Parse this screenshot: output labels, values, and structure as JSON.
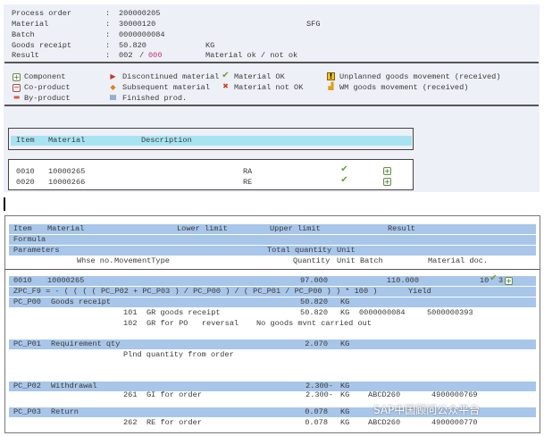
{
  "header": {
    "fields": [
      {
        "label": "Process order",
        "value": "200000205"
      },
      {
        "label": "Material",
        "value": "30000120",
        "extra": "SFG"
      },
      {
        "label": "Batch",
        "value": "0000000084"
      },
      {
        "label": "Goods receipt",
        "value": "50.820",
        "extra": "KG"
      },
      {
        "label": "Result",
        "value_ok": "002",
        "sep": "/",
        "value_not_ok": "000",
        "extra": "Material ok / not ok"
      }
    ],
    "colon": ":"
  },
  "legend": {
    "component": "Component",
    "co_product": "Co-product",
    "by_product": "By-product",
    "discontinued": "Discontinued material",
    "subsequent": "Subsequent material",
    "finished": "Finished prod.",
    "material_ok": "Material OK",
    "material_not_ok": "Material not OK",
    "unplanned": "Unplanned goods movement (received)",
    "wm": "WM goods movement (received)"
  },
  "items_table": {
    "headers": [
      "Item",
      "Material",
      "Description"
    ],
    "rows": [
      {
        "item": "0010",
        "material": "10000265",
        "description": "RA"
      },
      {
        "item": "0020",
        "material": "10000266",
        "description": "RE"
      }
    ]
  },
  "detail": {
    "headers": {
      "item": "Item",
      "material": "Material",
      "lower": "Lower limit",
      "upper": "Upper limit",
      "result": "Result",
      "formula": "Formula",
      "parameters": "Parameters",
      "total_qty": "Total quantity",
      "unit": "Unit",
      "whse": "Whse no.",
      "movement": "MovementType",
      "quantity": "Quantity",
      "unit2": "Unit",
      "batch": "Batch",
      "mat_doc": "Material doc."
    },
    "item_row": {
      "item": "0010",
      "material": "10000265",
      "lower": "97.000",
      "upper": "110.000",
      "result_a": "10",
      "result_b": "3"
    },
    "formula": "ZPC_F9 = - ( ( ( ( PC_P02 + PC_P03 ) / PC_P00 ) / ( PC_P01 / PC_P00 ) ) * 100 )",
    "formula_label": "Yield",
    "params": [
      {
        "code": "PC_P00",
        "name": "Goods receipt",
        "qty": "50.820",
        "unit": "KG",
        "moves": [
          {
            "mvt": "101",
            "text": "GR goods receipt",
            "qty": "50.820",
            "unit": "KG",
            "batch": "0000000084",
            "doc": "5000000393"
          },
          {
            "mvt": "102",
            "text": "GR for PO   reversal",
            "note": "No goods mvnt carried out"
          }
        ]
      },
      {
        "code": "PC_P01",
        "name": "Requirement qty",
        "qty": "2.070",
        "unit": "KG",
        "note": "Plnd quantity from order"
      },
      {
        "code": "PC_P02",
        "name": "Withdrawal",
        "qty": "2.300-",
        "unit": "KG",
        "moves": [
          {
            "mvt": "261",
            "text": "GI for order",
            "qty": "2.300-",
            "unit": "KG",
            "batch": "ABCD260",
            "doc": "4900000769"
          }
        ]
      },
      {
        "code": "PC_P03",
        "name": "Return",
        "qty": "0.078",
        "unit": "KG",
        "moves": [
          {
            "mvt": "262",
            "text": "RE for order",
            "qty": "0.078",
            "unit": "KG",
            "batch": "ABCD260",
            "doc": "4900000770"
          }
        ]
      }
    ]
  },
  "watermark": "SAP中国顾问公众平台",
  "colors": {
    "header_band": "#a8e3f2",
    "detail_band": "#a8c6ea",
    "ok": "#6aa030",
    "not_ok": "#c0306a"
  }
}
